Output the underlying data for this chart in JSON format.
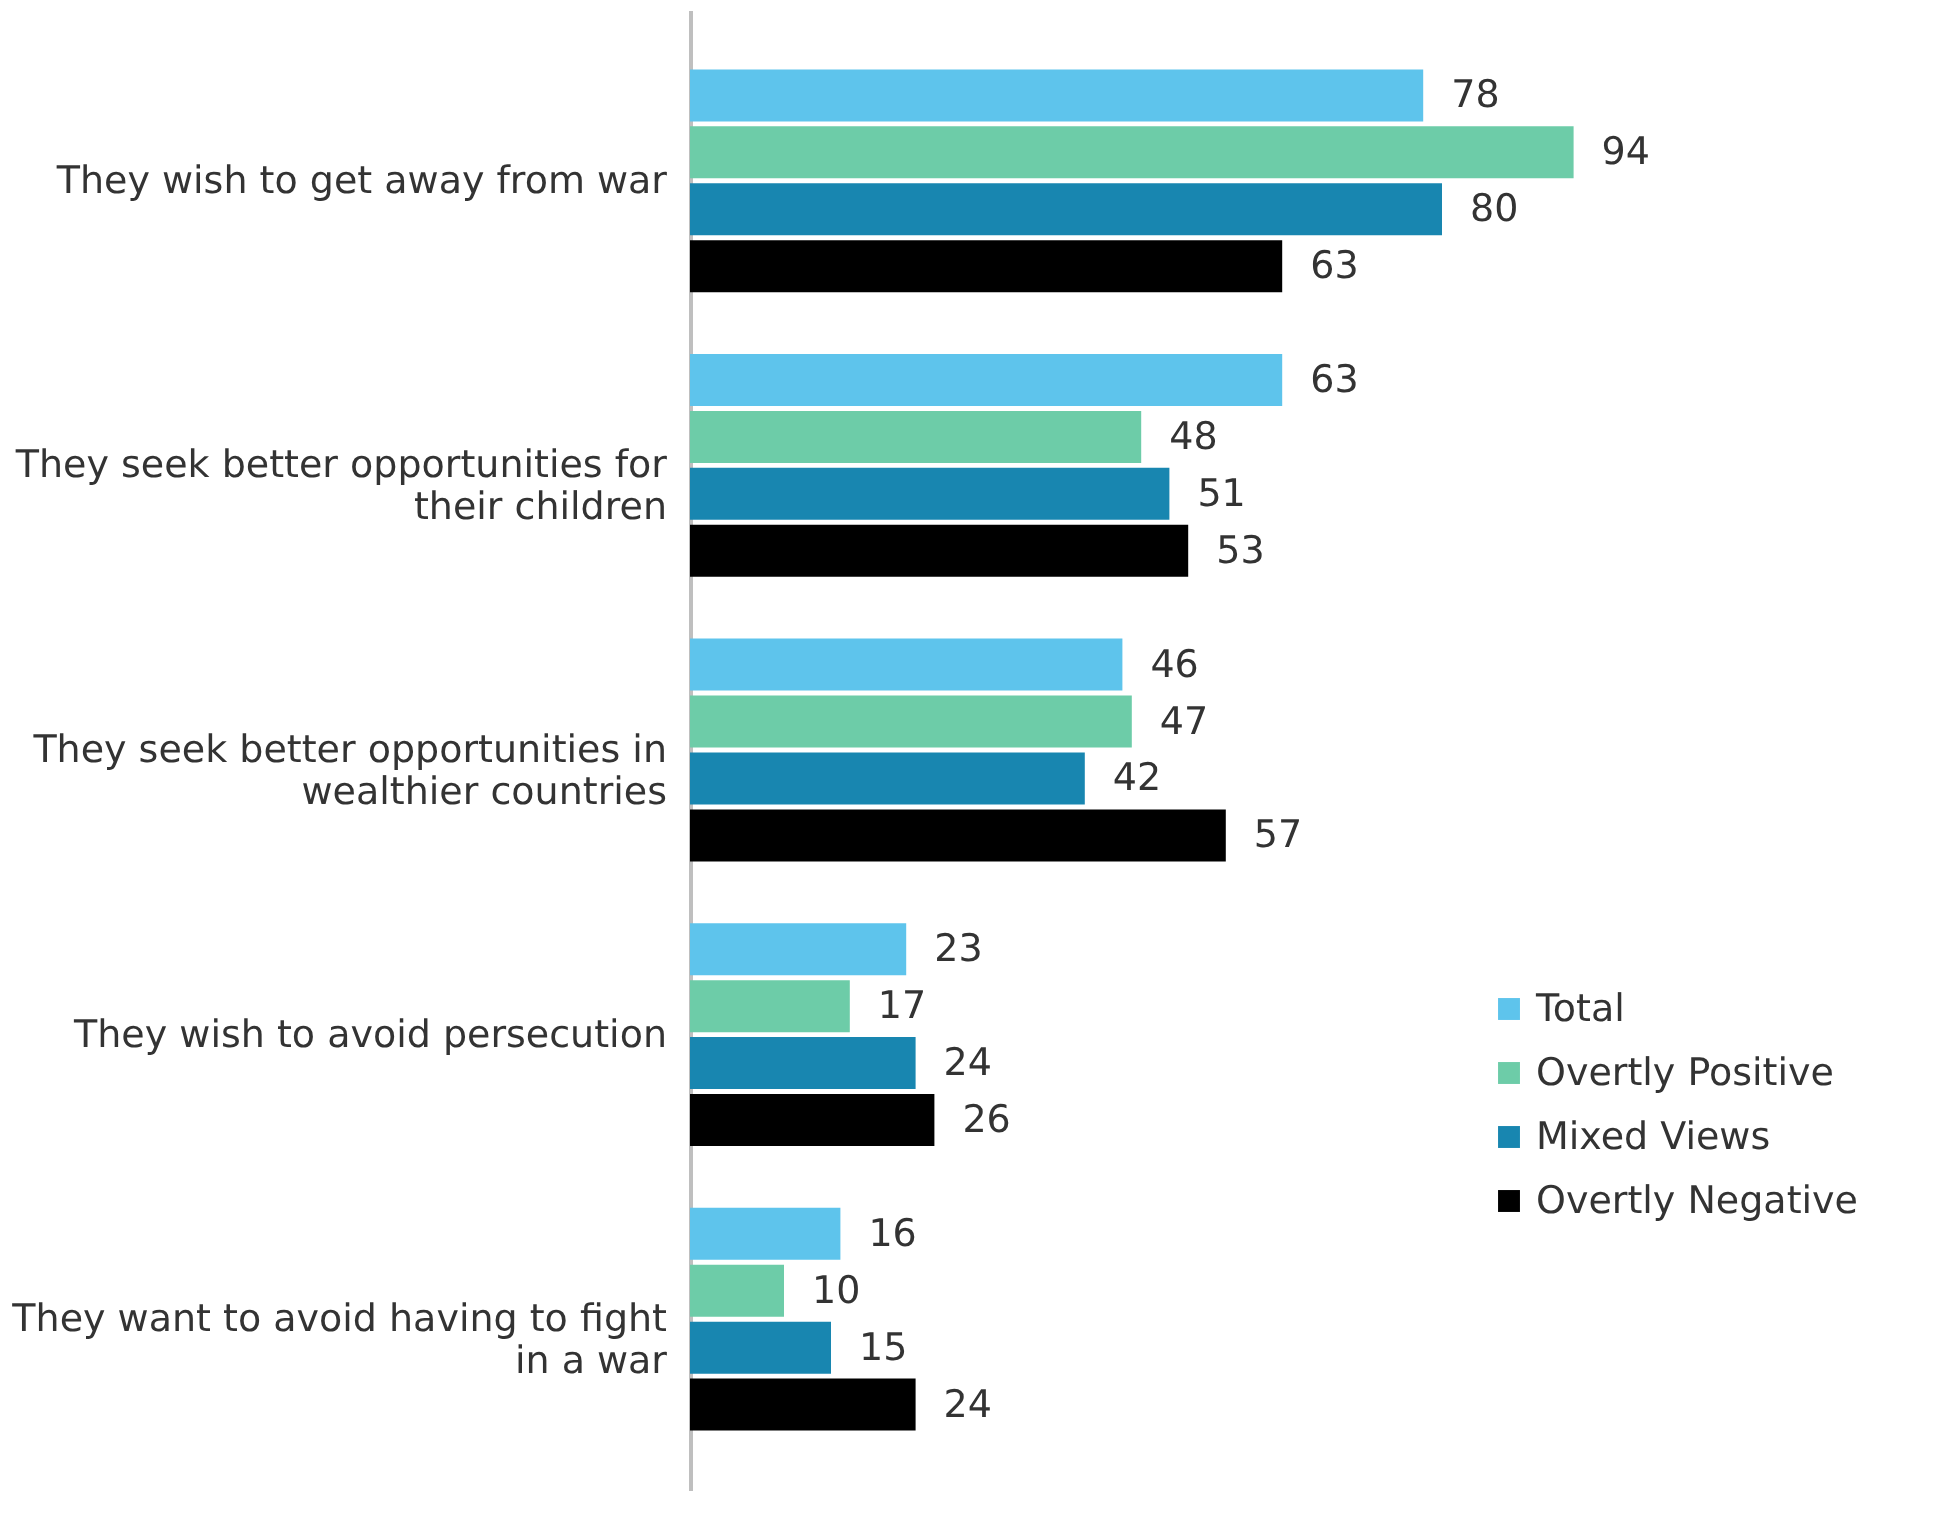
{
  "chart_data": {
    "type": "bar",
    "orientation": "horizontal",
    "categories": [
      "They wish to get away from war",
      "They seek better opportunities for their children",
      "They seek better opportunities in wealthier countries",
      "They wish to avoid persecution",
      "They want to avoid having to fight in a war"
    ],
    "series": [
      {
        "name": "Total",
        "color": "#5ec4ec",
        "values": [
          78,
          63,
          46,
          23,
          16
        ]
      },
      {
        "name": "Overtly Positive",
        "color": "#6dcca8",
        "values": [
          94,
          48,
          47,
          17,
          10
        ]
      },
      {
        "name": "Mixed Views",
        "color": "#1886b0",
        "values": [
          80,
          51,
          42,
          24,
          15
        ]
      },
      {
        "name": "Overtly Negative",
        "color": "#000000",
        "values": [
          63,
          53,
          57,
          26,
          24
        ]
      }
    ],
    "data_labels": true,
    "legend": "bottom right",
    "grid": false,
    "tick_labels": "y"
  }
}
